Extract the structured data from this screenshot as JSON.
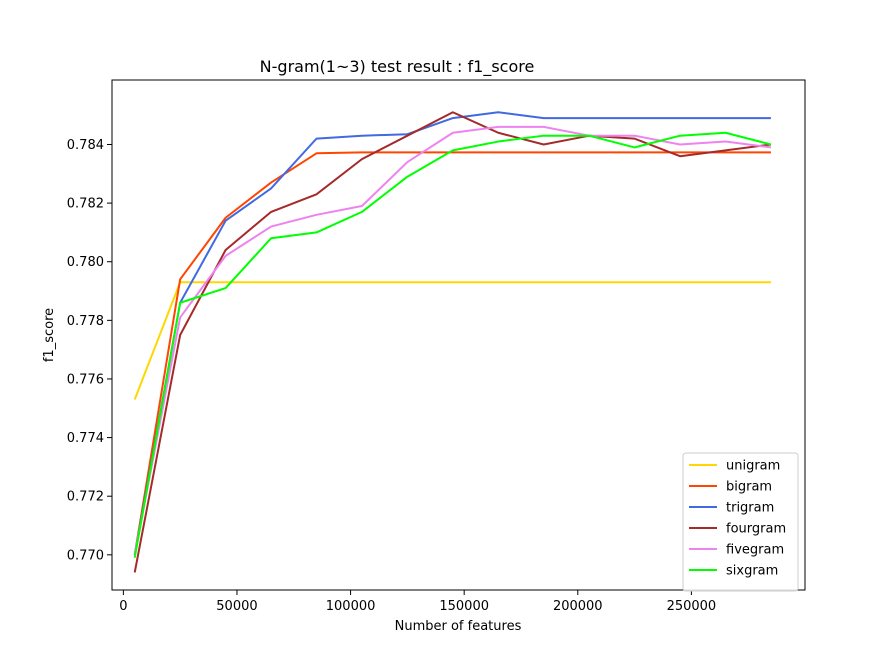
{
  "chart_data": {
    "type": "line",
    "title": "N-gram(1~3) test result : f1_score",
    "xlabel": "Number of features",
    "ylabel": "f1_score",
    "xlim": [
      -5000,
      300000
    ],
    "ylim": [
      0.7688,
      0.7862
    ],
    "xticks": [
      0,
      50000,
      100000,
      150000,
      200000,
      250000
    ],
    "xtick_labels": [
      "0",
      "50000",
      "100000",
      "150000",
      "200000",
      "250000"
    ],
    "yticks": [
      0.77,
      0.772,
      0.774,
      0.776,
      0.778,
      0.78,
      0.782,
      0.784
    ],
    "ytick_labels": [
      "0.770",
      "0.772",
      "0.774",
      "0.776",
      "0.778",
      "0.780",
      "0.782",
      "0.784"
    ],
    "grid": false,
    "legend_position": "lower-right",
    "x": [
      5000,
      25000,
      45000,
      65000,
      85000,
      105000,
      125000,
      145000,
      165000,
      185000,
      205000,
      225000,
      245000,
      265000,
      285000
    ],
    "series": [
      {
        "name": "unigram",
        "color": "#FFD700",
        "values": [
          0.7753,
          0.7793,
          0.7793,
          0.7793,
          0.7793,
          0.7793,
          0.7793,
          0.7793,
          0.7793,
          0.7793,
          0.7793,
          0.7793,
          0.7793,
          0.7793,
          0.7793
        ]
      },
      {
        "name": "bigram",
        "color": "#FF4500",
        "values": [
          0.77,
          0.7794,
          0.7815,
          0.7827,
          0.7837,
          0.78373,
          0.78373,
          0.78373,
          0.78373,
          0.78373,
          0.78373,
          0.78373,
          0.78373,
          0.78373,
          0.78373
        ]
      },
      {
        "name": "trigram",
        "color": "#4169E1",
        "values": [
          0.77,
          0.7786,
          0.7814,
          0.7825,
          0.7842,
          0.7843,
          0.78435,
          0.7849,
          0.7851,
          0.7849,
          0.7849,
          0.7849,
          0.7849,
          0.7849,
          0.7849
        ]
      },
      {
        "name": "fourgram",
        "color": "#A52A2A",
        "values": [
          0.7694,
          0.7775,
          0.7804,
          0.7817,
          0.7823,
          0.7835,
          0.7843,
          0.7851,
          0.7844,
          0.784,
          0.7843,
          0.7842,
          0.7836,
          0.7838,
          0.784
        ]
      },
      {
        "name": "fivegram",
        "color": "#EE82EE",
        "values": [
          0.77,
          0.7781,
          0.7802,
          0.7812,
          0.7816,
          0.7819,
          0.7834,
          0.7844,
          0.7846,
          0.7846,
          0.7843,
          0.7843,
          0.784,
          0.7841,
          0.7839
        ]
      },
      {
        "name": "sixgram",
        "color": "#00FF00",
        "values": [
          0.7699,
          0.7786,
          0.7791,
          0.7808,
          0.781,
          0.7817,
          0.7829,
          0.7838,
          0.7841,
          0.7843,
          0.7843,
          0.7839,
          0.7843,
          0.7844,
          0.784
        ]
      }
    ]
  }
}
